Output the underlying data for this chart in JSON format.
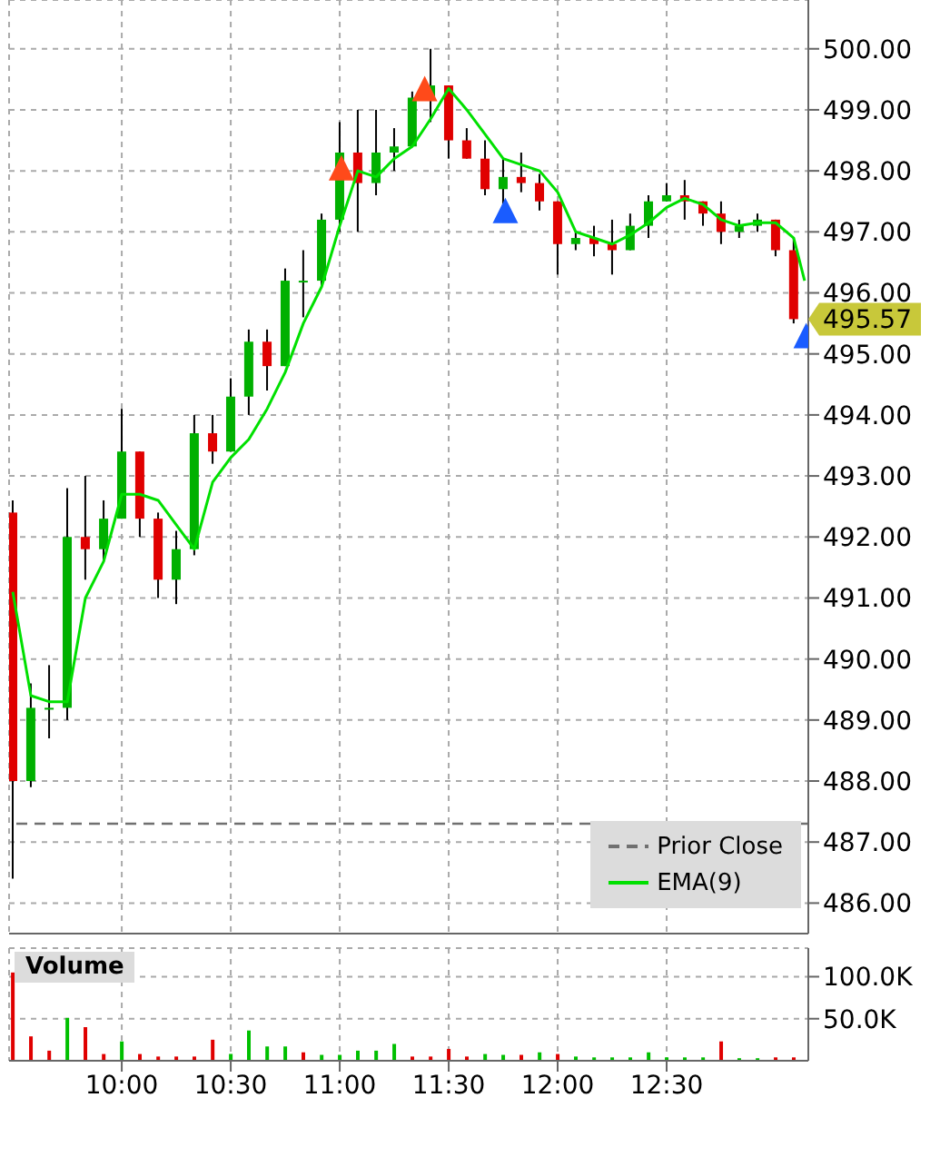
{
  "chart_data": [
    {
      "type": "candlestick",
      "x": [
        9.5,
        9.583,
        9.667,
        9.75,
        9.833,
        9.917,
        10,
        10.083,
        10.167,
        10.25,
        10.333,
        10.417,
        10.5,
        10.583,
        10.667,
        10.75,
        10.833,
        10.917,
        11,
        11.083,
        11.167,
        11.25,
        11.333,
        11.417,
        11.5,
        11.583,
        11.667,
        11.75,
        11.833,
        11.917,
        12,
        12.083,
        12.167,
        12.25,
        12.333,
        12.417,
        12.5,
        12.583,
        12.667,
        12.75,
        12.833,
        12.917,
        13,
        13.083
      ],
      "ohlc": [
        [
          492.4,
          492.6,
          486.4,
          488.0
        ],
        [
          488.0,
          489.6,
          487.9,
          489.2
        ],
        [
          489.2,
          489.9,
          488.7,
          489.2
        ],
        [
          489.2,
          492.8,
          489.0,
          492.0
        ],
        [
          492.0,
          493.0,
          491.3,
          491.8
        ],
        [
          491.8,
          492.6,
          491.6,
          492.3
        ],
        [
          492.3,
          494.1,
          492.3,
          493.4
        ],
        [
          493.4,
          493.4,
          492.0,
          492.3
        ],
        [
          492.3,
          492.4,
          491.0,
          491.3
        ],
        [
          491.3,
          492.1,
          490.9,
          491.8
        ],
        [
          491.8,
          494.0,
          491.7,
          493.7
        ],
        [
          493.7,
          494.0,
          493.2,
          493.4
        ],
        [
          493.4,
          494.6,
          493.4,
          494.3
        ],
        [
          494.3,
          495.4,
          494.0,
          495.2
        ],
        [
          495.2,
          495.4,
          494.4,
          494.8
        ],
        [
          494.8,
          496.4,
          494.8,
          496.2
        ],
        [
          496.2,
          496.7,
          495.6,
          496.2
        ],
        [
          496.2,
          497.3,
          496.1,
          497.2
        ],
        [
          497.2,
          498.8,
          497.0,
          498.3
        ],
        [
          498.3,
          499.0,
          497.0,
          497.8
        ],
        [
          497.8,
          499.0,
          497.6,
          498.3
        ],
        [
          498.3,
          498.7,
          498.0,
          498.4
        ],
        [
          498.4,
          499.3,
          498.4,
          499.2
        ],
        [
          499.2,
          500.0,
          498.8,
          499.4
        ],
        [
          499.4,
          499.4,
          498.2,
          498.5
        ],
        [
          498.5,
          498.7,
          498.2,
          498.2
        ],
        [
          498.2,
          498.5,
          497.6,
          497.7
        ],
        [
          497.7,
          498.2,
          497.4,
          497.9
        ],
        [
          497.9,
          498.3,
          497.65,
          497.8
        ],
        [
          497.8,
          497.95,
          497.35,
          497.5
        ],
        [
          497.5,
          497.5,
          496.3,
          496.8
        ],
        [
          496.8,
          497.0,
          496.7,
          496.9
        ],
        [
          496.9,
          497.1,
          496.6,
          496.8
        ],
        [
          496.8,
          497.2,
          496.3,
          496.7
        ],
        [
          496.7,
          497.3,
          496.7,
          497.1
        ],
        [
          497.1,
          497.6,
          496.9,
          497.5
        ],
        [
          497.5,
          497.8,
          497.5,
          497.6
        ],
        [
          497.6,
          497.85,
          497.2,
          497.5
        ],
        [
          497.5,
          497.5,
          497.1,
          497.3
        ],
        [
          497.3,
          497.5,
          496.8,
          497.0
        ],
        [
          497.0,
          497.2,
          496.9,
          497.1
        ],
        [
          497.1,
          497.3,
          497.0,
          497.2
        ],
        [
          497.2,
          497.2,
          496.6,
          496.7
        ],
        [
          496.7,
          496.9,
          495.5,
          495.57
        ]
      ],
      "series": [
        {
          "type": "line",
          "name": "EMA(9)",
          "color": "#00e000",
          "x": [
            9.5,
            9.583,
            9.667,
            9.75,
            9.833,
            9.917,
            10,
            10.083,
            10.167,
            10.25,
            10.333,
            10.417,
            10.5,
            10.583,
            10.667,
            10.75,
            10.833,
            10.917,
            11,
            11.083,
            11.167,
            11.25,
            11.333,
            11.417,
            11.5,
            11.583,
            11.667,
            11.75,
            11.833,
            11.917,
            12,
            12.083,
            12.167,
            12.25,
            12.333,
            12.417,
            12.5,
            12.583,
            12.667,
            12.75,
            12.833,
            12.917,
            13,
            13.083,
            13.133
          ],
          "values": [
            491.1,
            489.4,
            489.3,
            489.3,
            491.0,
            491.6,
            492.7,
            492.7,
            492.6,
            492.2,
            491.8,
            492.9,
            493.3,
            493.6,
            494.1,
            494.7,
            495.5,
            496.1,
            497.1,
            498.0,
            497.9,
            498.2,
            498.4,
            498.85,
            499.35,
            499.0,
            498.6,
            498.2,
            498.1,
            498.0,
            497.65,
            497.0,
            496.9,
            496.8,
            496.95,
            497.15,
            497.4,
            497.55,
            497.45,
            497.2,
            497.1,
            497.15,
            497.15,
            496.9,
            496.2
          ]
        },
        {
          "type": "scatter",
          "color": "#ff4a1a",
          "marker": "triangle",
          "x": [
            11.008,
            11.39
          ],
          "values": [
            498.05,
            499.35
          ]
        },
        {
          "type": "scatter",
          "color": "#1a5cff",
          "marker": "triangle",
          "x": [
            11.76,
            13.14
          ],
          "values": [
            497.35,
            495.3
          ]
        }
      ],
      "ref_lines": [
        {
          "axis": "y",
          "value": 487.3,
          "label": "Prior Close",
          "color": "#707070",
          "line_style": "dashed"
        }
      ],
      "annotations": [
        {
          "text": "495.57",
          "x": 13.15,
          "y": 495.57
        }
      ],
      "xlim": [
        9.483,
        13.15
      ],
      "xticks": [
        10,
        10.5,
        11,
        11.5,
        12,
        12.5
      ],
      "ylim": [
        485.5,
        500.8
      ],
      "yticks": [
        {
          "value": 486,
          "label": "486.00"
        },
        {
          "value": 487,
          "label": "487.00"
        },
        {
          "value": 488,
          "label": "488.00"
        },
        {
          "value": 489,
          "label": "489.00"
        },
        {
          "value": 490,
          "label": "490.00"
        },
        {
          "value": 491,
          "label": "491.00"
        },
        {
          "value": 492,
          "label": "492.00"
        },
        {
          "value": 493,
          "label": "493.00"
        },
        {
          "value": 494,
          "label": "494.00"
        },
        {
          "value": 495,
          "label": "495.00"
        },
        {
          "value": 496,
          "label": "496.00"
        },
        {
          "value": 497,
          "label": "497.00"
        },
        {
          "value": 498,
          "label": "498.00"
        },
        {
          "value": 499,
          "label": "499.00"
        },
        {
          "value": 500,
          "label": "500.00"
        }
      ],
      "tick_labels": "y",
      "grid": true,
      "legend": "bottom right"
    },
    {
      "type": "bar",
      "title": "Volume",
      "x": [
        9.5,
        9.583,
        9.667,
        9.75,
        9.833,
        9.917,
        10,
        10.083,
        10.167,
        10.25,
        10.333,
        10.417,
        10.5,
        10.583,
        10.667,
        10.75,
        10.833,
        10.917,
        11,
        11.083,
        11.167,
        11.25,
        11.333,
        11.417,
        11.5,
        11.583,
        11.667,
        11.75,
        11.833,
        11.917,
        12,
        12.083,
        12.167,
        12.25,
        12.333,
        12.417,
        12.5,
        12.583,
        12.667,
        12.75,
        12.833,
        12.917,
        13,
        13.083
      ],
      "values": [
        105,
        29,
        12,
        51,
        40,
        8,
        23,
        8,
        5,
        5,
        5,
        25,
        8,
        36,
        17,
        17,
        10,
        7,
        7,
        12,
        12,
        20,
        5,
        5,
        14,
        5,
        8,
        7,
        7,
        10,
        8,
        5,
        4,
        4,
        4,
        10,
        4,
        4,
        4,
        23,
        3,
        3,
        4,
        4
      ],
      "colors": [
        "#e00000",
        "#e00000",
        "#e00000",
        "#00c000",
        "#e00000",
        "#e00000",
        "#00c000",
        "#e00000",
        "#e00000",
        "#e00000",
        "#e00000",
        "#e00000",
        "#00c000",
        "#00c000",
        "#00c000",
        "#00c000",
        "#e00000",
        "#00c000",
        "#00c000",
        "#00c000",
        "#00c000",
        "#00c000",
        "#e00000",
        "#e00000",
        "#e00000",
        "#e00000",
        "#00c000",
        "#00c000",
        "#e00000",
        "#00c000",
        "#e00000",
        "#00c000",
        "#00c000",
        "#00c000",
        "#00c000",
        "#00c000",
        "#00c000",
        "#00c000",
        "#00c000",
        "#e00000",
        "#00c000",
        "#00c000",
        "#e00000",
        "#e00000"
      ],
      "xlim": [
        9.483,
        13.15
      ],
      "xticks": [
        {
          "value": 10,
          "label": "10:00"
        },
        {
          "value": 10.5,
          "label": "10:30"
        },
        {
          "value": 11,
          "label": "11:00"
        },
        {
          "value": 11.5,
          "label": "11:30"
        },
        {
          "value": 12,
          "label": "12:00"
        },
        {
          "value": 12.5,
          "label": "12:30"
        }
      ],
      "ylim": [
        0,
        134
      ],
      "yticks": [
        {
          "value": 50,
          "label": "50.0K"
        },
        {
          "value": 100,
          "label": "100.0K"
        }
      ],
      "grid": true
    }
  ]
}
